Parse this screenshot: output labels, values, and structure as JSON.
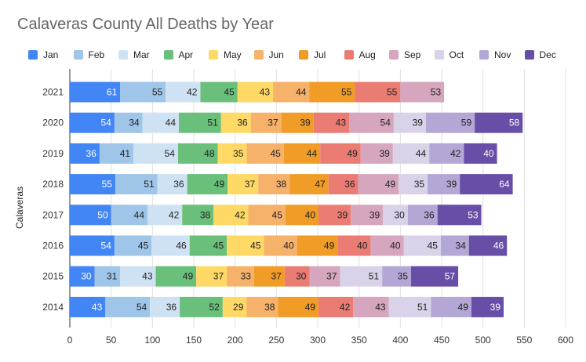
{
  "chart_data": {
    "type": "bar",
    "orientation": "horizontal",
    "stacked": true,
    "title": "Calaveras County All Deaths by Year",
    "ylabel": "Calaveras",
    "xlabel": "",
    "xlim": [
      0,
      600
    ],
    "xticks": [
      "0",
      "50",
      "100",
      "150",
      "200",
      "250",
      "300",
      "350",
      "400",
      "450",
      "500",
      "550",
      "600"
    ],
    "grid": true,
    "legend_position": "top",
    "categories": [
      "2021",
      "2020",
      "2019",
      "2018",
      "2017",
      "2016",
      "2015",
      "2014"
    ],
    "series": [
      {
        "name": "Jan",
        "color": "#4285f4",
        "values": [
          61,
          54,
          36,
          55,
          50,
          54,
          30,
          43
        ]
      },
      {
        "name": "Feb",
        "color": "#9fc5e8",
        "values": [
          55,
          34,
          41,
          51,
          44,
          45,
          31,
          54
        ]
      },
      {
        "name": "Mar",
        "color": "#cfe2f3",
        "values": [
          42,
          44,
          54,
          36,
          42,
          46,
          43,
          36
        ]
      },
      {
        "name": "Apr",
        "color": "#6abf7b",
        "values": [
          45,
          51,
          48,
          49,
          38,
          45,
          49,
          52
        ]
      },
      {
        "name": "May",
        "color": "#ffd966",
        "values": [
          43,
          36,
          35,
          37,
          42,
          45,
          37,
          29
        ]
      },
      {
        "name": "Jun",
        "color": "#f6b26b",
        "values": [
          44,
          37,
          45,
          38,
          45,
          40,
          33,
          38
        ]
      },
      {
        "name": "Jul",
        "color": "#f09c27",
        "values": [
          55,
          39,
          44,
          47,
          40,
          49,
          37,
          49
        ]
      },
      {
        "name": "Aug",
        "color": "#ea7c74",
        "values": [
          55,
          43,
          49,
          36,
          39,
          40,
          30,
          42
        ]
      },
      {
        "name": "Sep",
        "color": "#d5a6bd",
        "values": [
          53,
          54,
          39,
          49,
          39,
          40,
          37,
          43
        ]
      },
      {
        "name": "Oct",
        "color": "#d9d2e9",
        "values": [
          null,
          39,
          44,
          35,
          30,
          45,
          51,
          51
        ]
      },
      {
        "name": "Nov",
        "color": "#b4a7d6",
        "values": [
          null,
          59,
          42,
          39,
          36,
          34,
          35,
          49
        ]
      },
      {
        "name": "Dec",
        "color": "#674ea7",
        "values": [
          null,
          58,
          40,
          64,
          53,
          46,
          57,
          39
        ]
      }
    ]
  }
}
